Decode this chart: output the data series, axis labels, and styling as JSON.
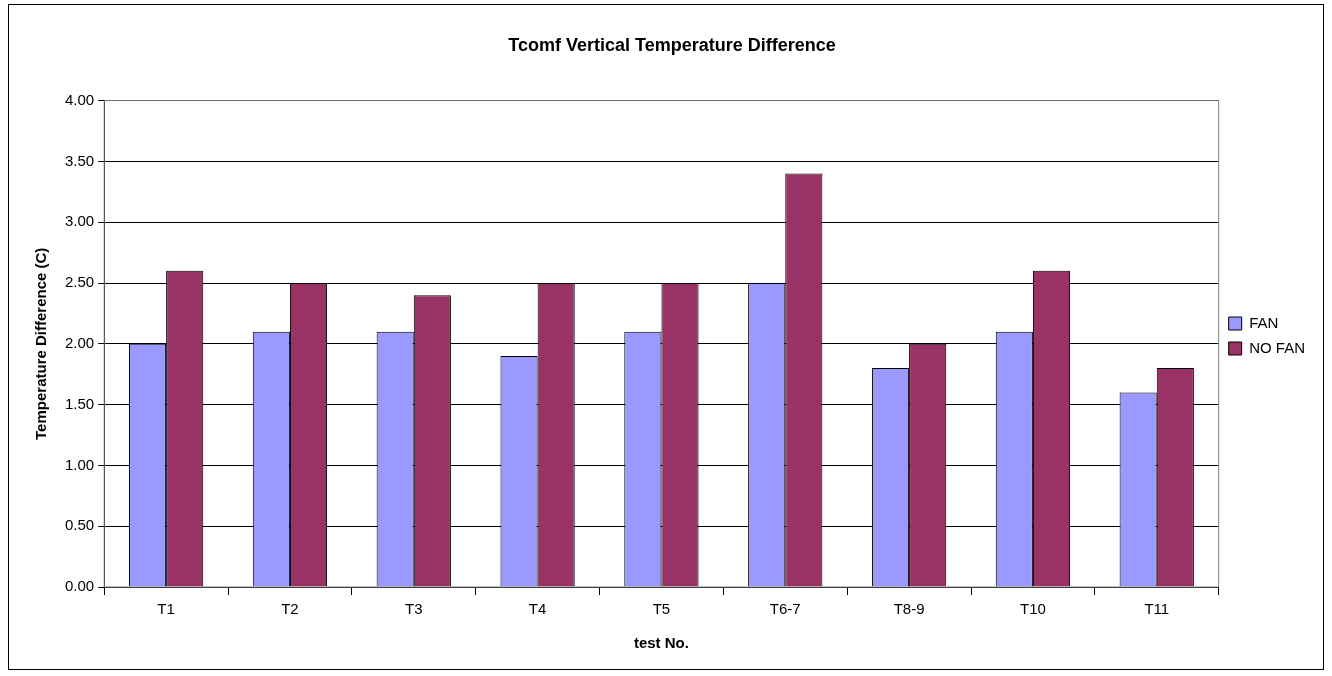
{
  "chart_data": {
    "type": "bar",
    "title": "Tcomf Vertical Temperature Difference",
    "xlabel": "test No.",
    "ylabel": "Temperature Difference (C)",
    "categories": [
      "T1",
      "T2",
      "T3",
      "T4",
      "T5",
      "T6-7",
      "T8-9",
      "T10",
      "T11"
    ],
    "series": [
      {
        "name": "FAN",
        "color": "#9999ff",
        "values": [
          2.0,
          2.1,
          2.1,
          1.9,
          2.1,
          2.5,
          1.8,
          2.1,
          1.6
        ]
      },
      {
        "name": "NO FAN",
        "color": "#993366",
        "values": [
          2.6,
          2.5,
          2.4,
          2.5,
          2.5,
          3.4,
          2.0,
          2.6,
          1.8
        ]
      }
    ],
    "ylim": [
      0,
      4
    ],
    "yticks": [
      {
        "value": 0,
        "label": "0.00"
      },
      {
        "value": 0.5,
        "label": "0.50"
      },
      {
        "value": 1,
        "label": "1.00"
      },
      {
        "value": 1.5,
        "label": "1.50"
      },
      {
        "value": 2,
        "label": "2.00"
      },
      {
        "value": 2.5,
        "label": "2.50"
      },
      {
        "value": 3,
        "label": "3.00"
      },
      {
        "value": 3.5,
        "label": "3.50"
      },
      {
        "value": 4,
        "label": "4.00"
      }
    ],
    "grid": "y",
    "legend": "right"
  }
}
